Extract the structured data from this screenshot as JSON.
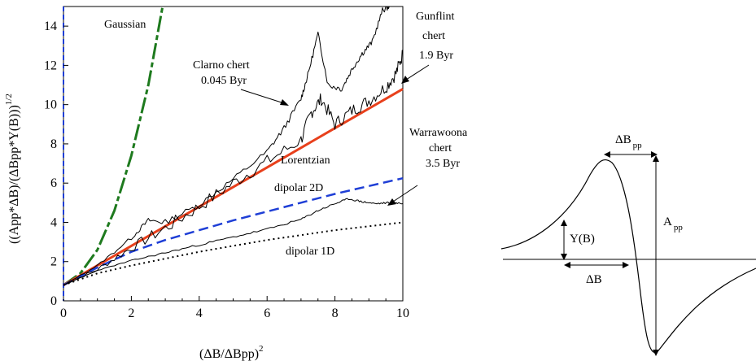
{
  "chart_data": [
    {
      "type": "line",
      "xlabel": "(ΔB/ΔBpp)",
      "xlabel_sup": "2",
      "ylabel": "((App*ΔB)/(ΔBpp*Y(B)))",
      "ylabel_sup": "1/2",
      "xlim": [
        0,
        10
      ],
      "ylim": [
        0,
        15
      ],
      "xticks": [
        0,
        2,
        4,
        6,
        8,
        10
      ],
      "yticks": [
        0,
        2,
        4,
        6,
        8,
        10,
        12,
        14
      ],
      "grid": false,
      "series": [
        {
          "name": "Gaussian",
          "style": "long-dash",
          "color": "#1e7a1e",
          "points": [
            [
              0,
              0.8
            ],
            [
              0.5,
              1.4
            ],
            [
              1.0,
              2.6
            ],
            [
              1.5,
              4.6
            ],
            [
              2.0,
              7.4
            ],
            [
              2.5,
              11.0
            ],
            [
              2.92,
              15.0
            ]
          ]
        },
        {
          "name": "Lorentzian",
          "style": "solid",
          "color": "#e8401c",
          "points": [
            [
              0,
              0.8
            ],
            [
              2,
              2.8
            ],
            [
              4,
              4.8
            ],
            [
              6,
              6.8
            ],
            [
              8,
              8.8
            ],
            [
              10,
              10.8
            ]
          ]
        },
        {
          "name": "dipolar 2D",
          "style": "dash",
          "color": "#1f3fd6",
          "points": [
            [
              0,
              0.8
            ],
            [
              1,
              1.7
            ],
            [
              2,
              2.5
            ],
            [
              3,
              3.1
            ],
            [
              4,
              3.6
            ],
            [
              5,
              4.1
            ],
            [
              6,
              4.55
            ],
            [
              7,
              5.0
            ],
            [
              8,
              5.45
            ],
            [
              9,
              5.85
            ],
            [
              10,
              6.25
            ]
          ]
        },
        {
          "name": "dipolar 1D",
          "style": "dot",
          "color": "#000000",
          "points": [
            [
              0,
              0.8
            ],
            [
              1,
              1.4
            ],
            [
              2,
              1.8
            ],
            [
              3,
              2.15
            ],
            [
              4,
              2.5
            ],
            [
              5,
              2.8
            ],
            [
              6,
              3.1
            ],
            [
              7,
              3.35
            ],
            [
              8,
              3.6
            ],
            [
              9,
              3.8
            ],
            [
              10,
              4.0
            ]
          ]
        },
        {
          "name": "Clarno chert 0.045 Byr",
          "style": "solid",
          "color": "#000000",
          "points": [
            [
              0,
              0.8
            ],
            [
              1,
              1.8
            ],
            [
              2,
              3.2
            ],
            [
              2.5,
              4.1
            ],
            [
              3,
              4.0
            ],
            [
              4,
              4.9
            ],
            [
              5,
              6.2
            ],
            [
              6,
              7.6
            ],
            [
              6.5,
              8.8
            ],
            [
              7,
              10.3
            ],
            [
              7.2,
              11.5
            ],
            [
              7.5,
              13.6
            ],
            [
              7.8,
              11.0
            ],
            [
              8.2,
              10.8
            ],
            [
              8.5,
              11.8
            ],
            [
              8.8,
              12.6
            ],
            [
              9.1,
              13.2
            ],
            [
              9.4,
              14.8
            ],
            [
              9.6,
              15.0
            ]
          ]
        },
        {
          "name": "Gunflint chert 1.9 Byr",
          "style": "solid",
          "color": "#000000",
          "points": [
            [
              0,
              0.8
            ],
            [
              1,
              1.6
            ],
            [
              2,
              2.7
            ],
            [
              3,
              3.7
            ],
            [
              4,
              4.8
            ],
            [
              5,
              6.0
            ],
            [
              6,
              7.1
            ],
            [
              7,
              8.2
            ],
            [
              7.3,
              9.6
            ],
            [
              7.6,
              10.3
            ],
            [
              8,
              9.0
            ],
            [
              8.5,
              9.7
            ],
            [
              9,
              10.2
            ],
            [
              9.5,
              10.9
            ],
            [
              9.8,
              11.6
            ],
            [
              10,
              12.6
            ]
          ]
        },
        {
          "name": "Warrawoona chert 3.5 Byr",
          "style": "solid",
          "color": "#000000",
          "points": [
            [
              0,
              0.8
            ],
            [
              1,
              1.55
            ],
            [
              2,
              2.05
            ],
            [
              3,
              2.45
            ],
            [
              4,
              2.85
            ],
            [
              5,
              3.25
            ],
            [
              6,
              3.65
            ],
            [
              7,
              4.15
            ],
            [
              7.5,
              4.6
            ],
            [
              8,
              4.95
            ],
            [
              8.4,
              5.2
            ],
            [
              8.8,
              5.05
            ],
            [
              9.2,
              4.95
            ],
            [
              9.6,
              5.0
            ],
            [
              10,
              4.95
            ]
          ]
        }
      ],
      "annotations": {
        "gaussian": "Gaussian",
        "clarno_line1": "Clarno chert",
        "clarno_line2": "0.045 Byr",
        "gunflint_line1": "Gunflint",
        "gunflint_line2": "chert",
        "gunflint_line3": "1.9 Byr",
        "warrawoona_line1": "Warrawoona",
        "warrawoona_line2": "chert",
        "warrawoona_line3": "3.5 Byr",
        "lorentzian": "Lorentzian",
        "dipolar2d": "dipolar 2D",
        "dipolar1d": "dipolar 1D"
      }
    },
    {
      "type": "diagram",
      "labels": {
        "dbpp_main": "ΔB",
        "dbpp_sub": "pp",
        "app_main": "A",
        "app_sub": "pp",
        "yb": "Y(B)",
        "db": "ΔB"
      }
    }
  ]
}
